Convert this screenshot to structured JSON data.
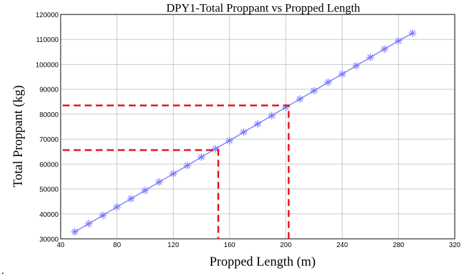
{
  "chart_data": {
    "type": "line",
    "title": "DPY1-Total Proppant vs Propped Length",
    "xlabel": "Propped Length (m)",
    "ylabel": "Total Proppant (kg)",
    "xlim": [
      40,
      320
    ],
    "ylim": [
      30000,
      120000
    ],
    "x_ticks": [
      40,
      80,
      120,
      160,
      200,
      240,
      280,
      320
    ],
    "y_ticks": [
      30000,
      40000,
      50000,
      60000,
      70000,
      80000,
      90000,
      100000,
      110000,
      120000
    ],
    "x_tick_labels": [
      "40",
      "80",
      "120",
      "160",
      "200",
      "240",
      "280",
      "320"
    ],
    "y_tick_labels": [
      "30000",
      "40000",
      "50000",
      "60000",
      "70000",
      "80000",
      "90000",
      "100000",
      "110000",
      "120000"
    ],
    "grid": true,
    "series": [
      {
        "x": [
          50,
          60,
          70,
          80,
          90,
          100,
          110,
          120,
          130,
          140,
          150,
          160,
          170,
          180,
          190,
          200,
          210,
          220,
          230,
          240,
          250,
          260,
          270,
          280,
          290
        ],
        "y": [
          32800,
          36100,
          39400,
          42800,
          46100,
          49400,
          52800,
          56100,
          59400,
          62800,
          66100,
          69400,
          72800,
          76100,
          79400,
          82800,
          86100,
          89400,
          92800,
          96100,
          99400,
          102800,
          106100,
          109400,
          112500
        ],
        "color": "#7b7bff",
        "marker": "asterisk"
      }
    ],
    "annotations": [
      {
        "type": "dashed-guide",
        "x": 152,
        "y": 65600,
        "color": "#e8161b"
      },
      {
        "type": "dashed-guide",
        "x": 202,
        "y": 83500,
        "color": "#e8161b"
      }
    ],
    "trailing_mark": "."
  }
}
